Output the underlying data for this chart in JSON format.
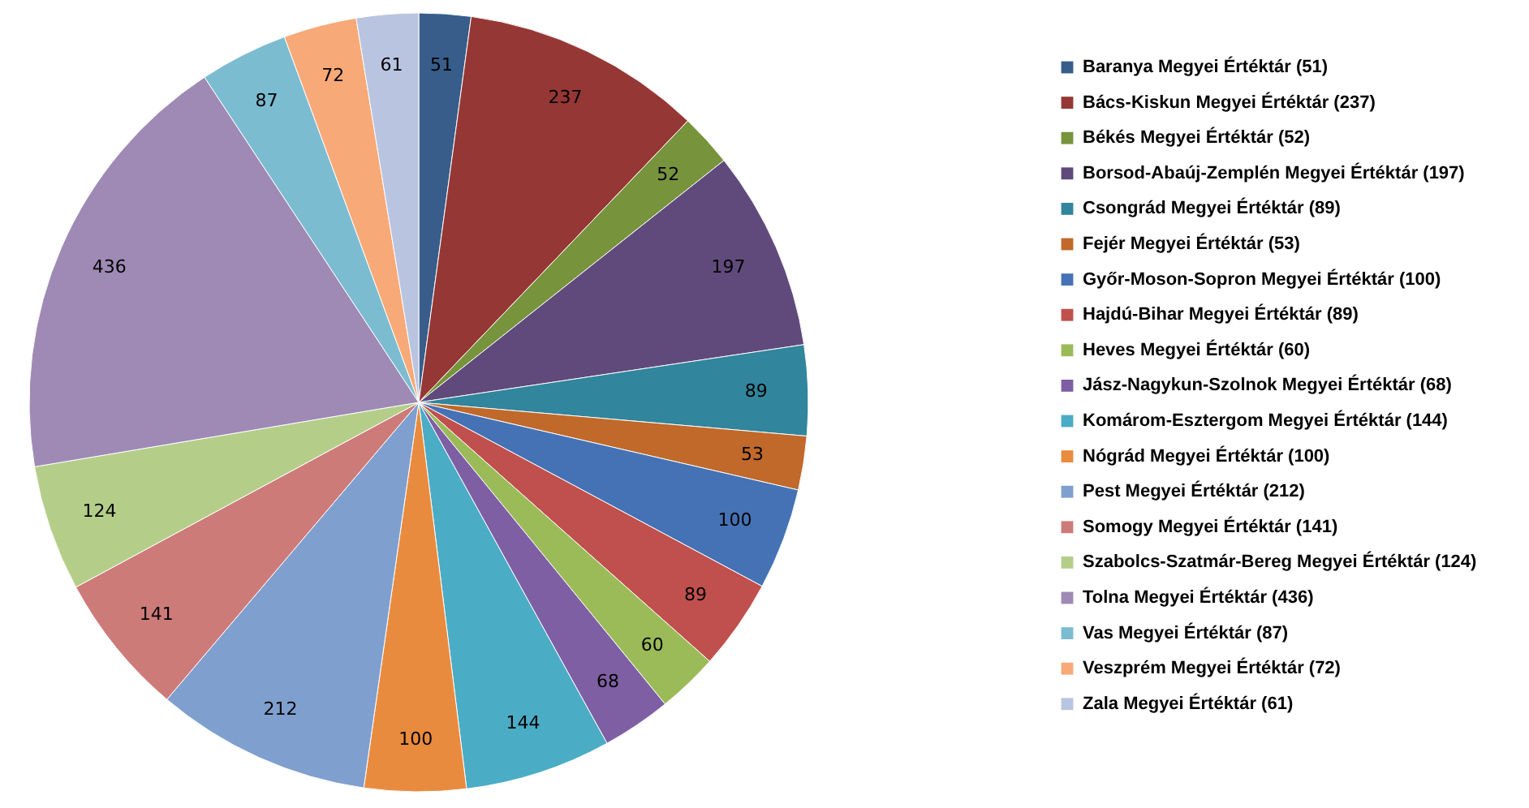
{
  "chart_data": {
    "type": "pie",
    "categories": [
      "Baranya Megyei Értéktár (51)",
      "Bács-Kiskun Megyei Értéktár (237)",
      "Békés Megyei Értéktár (52)",
      "Borsod-Abaúj-Zemplén Megyei Értéktár (197)",
      "Csongrád Megyei Értéktár (89)",
      "Fejér Megyei Értéktár (53)",
      "Győr-Moson-Sopron Megyei Értéktár (100)",
      "Hajdú-Bihar Megyei Értéktár (89)",
      "Heves Megyei Értéktár (60)",
      "Jász-Nagykun-Szolnok Megyei Értéktár (68)",
      "Komárom-Esztergom Megyei Értéktár (144)",
      "Nógrád Megyei Értéktár (100)",
      "Pest Megyei Értéktár (212)",
      "Somogy Megyei Értéktár (141)",
      "Szabolcs-Szatmár-Bereg Megyei Értéktár (124)",
      "Tolna Megyei Értéktár (436)",
      "Vas Megyei Értéktár (87)",
      "Veszprém Megyei Értéktár (72)",
      "Zala Megyei Értéktár (61)"
    ],
    "values": [
      51,
      237,
      52,
      197,
      89,
      53,
      100,
      89,
      60,
      68,
      144,
      100,
      212,
      141,
      124,
      436,
      87,
      72,
      61
    ],
    "colors": [
      "#385d8a",
      "#953735",
      "#77933c",
      "#604a7b",
      "#31859c",
      "#c0692b",
      "#4572b5",
      "#c0504d",
      "#9bbb59",
      "#7f5fa3",
      "#4bacc6",
      "#e98b3f",
      "#7f9fcf",
      "#cd7b79",
      "#b4ce8a",
      "#9e8ab5",
      "#7cbcd1",
      "#f8a978",
      "#b9c4e0"
    ],
    "data_labels": true,
    "legend": "right"
  }
}
